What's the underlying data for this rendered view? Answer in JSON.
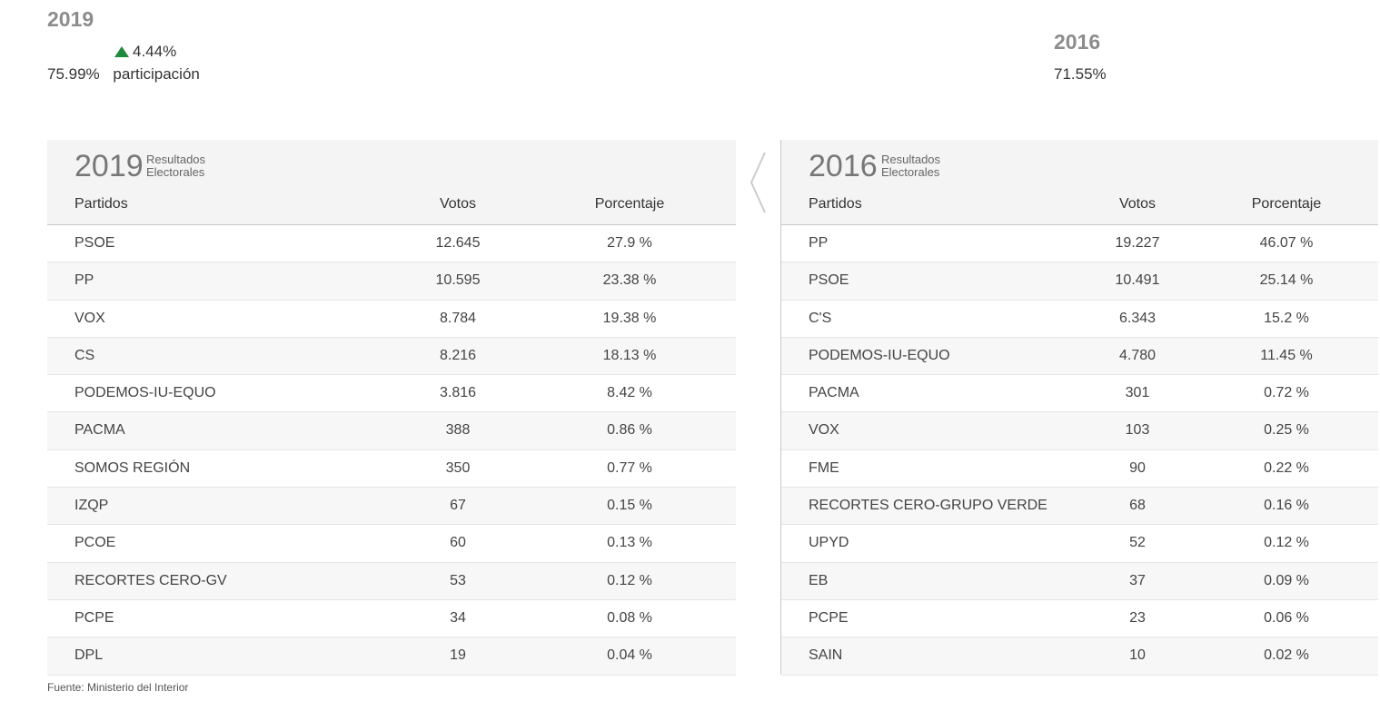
{
  "summary": {
    "current": {
      "year": "2019",
      "participation": "75.99%",
      "label": "participación",
      "delta": "4.44%",
      "delta_color": "#1f8a3c"
    },
    "previous": {
      "year": "2016",
      "participation": "71.55%"
    }
  },
  "left": {
    "year": "2019",
    "subtitle_line1": "Resultados",
    "subtitle_line2": "Electorales",
    "headers": {
      "party": "Partidos",
      "votes": "Votos",
      "pct": "Porcentaje"
    },
    "rows": [
      {
        "party": "PSOE",
        "votes": "12.645",
        "pct": "27.9 %"
      },
      {
        "party": "PP",
        "votes": "10.595",
        "pct": "23.38 %"
      },
      {
        "party": "VOX",
        "votes": "8.784",
        "pct": "19.38 %"
      },
      {
        "party": "CS",
        "votes": "8.216",
        "pct": "18.13 %"
      },
      {
        "party": "PODEMOS-IU-EQUO",
        "votes": "3.816",
        "pct": "8.42 %"
      },
      {
        "party": "PACMA",
        "votes": "388",
        "pct": "0.86 %"
      },
      {
        "party": "SOMOS REGIÓN",
        "votes": "350",
        "pct": "0.77 %"
      },
      {
        "party": "IZQP",
        "votes": "67",
        "pct": "0.15 %"
      },
      {
        "party": "PCOE",
        "votes": "60",
        "pct": "0.13 %"
      },
      {
        "party": "RECORTES CERO-GV",
        "votes": "53",
        "pct": "0.12 %"
      },
      {
        "party": "PCPE",
        "votes": "34",
        "pct": "0.08 %"
      },
      {
        "party": "DPL",
        "votes": "19",
        "pct": "0.04 %"
      }
    ]
  },
  "right": {
    "year": "2016",
    "subtitle_line1": "Resultados",
    "subtitle_line2": "Electorales",
    "headers": {
      "party": "Partidos",
      "votes": "Votos",
      "pct": "Porcentaje"
    },
    "rows": [
      {
        "party": "PP",
        "votes": "19.227",
        "pct": "46.07 %"
      },
      {
        "party": "PSOE",
        "votes": "10.491",
        "pct": "25.14 %"
      },
      {
        "party": "C'S",
        "votes": "6.343",
        "pct": "15.2 %"
      },
      {
        "party": "PODEMOS-IU-EQUO",
        "votes": "4.780",
        "pct": "11.45 %"
      },
      {
        "party": "PACMA",
        "votes": "301",
        "pct": "0.72 %"
      },
      {
        "party": "VOX",
        "votes": "103",
        "pct": "0.25 %"
      },
      {
        "party": "FME",
        "votes": "90",
        "pct": "0.22 %"
      },
      {
        "party": "RECORTES CERO-GRUPO VERDE",
        "votes": "68",
        "pct": "0.16 %"
      },
      {
        "party": "UPYD",
        "votes": "52",
        "pct": "0.12 %"
      },
      {
        "party": "EB",
        "votes": "37",
        "pct": "0.09 %"
      },
      {
        "party": "PCPE",
        "votes": "23",
        "pct": "0.06 %"
      },
      {
        "party": "SAIN",
        "votes": "10",
        "pct": "0.02 %"
      }
    ]
  },
  "source": "Fuente: Ministerio del Interior",
  "icons": {
    "prev": "chevron-left-icon",
    "up": "triangle-up-icon"
  }
}
